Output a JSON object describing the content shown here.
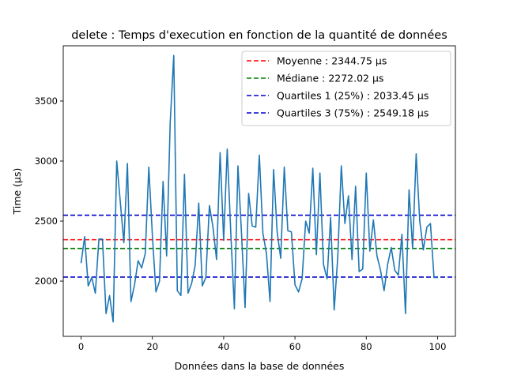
{
  "chart_data": {
    "type": "line",
    "title": "delete : Temps d'execution en fonction de la quantité de données",
    "xlabel": "Données dans la base de données",
    "ylabel": "Time (µs)",
    "xlim": [
      -5,
      105
    ],
    "ylim": [
      1540,
      3960
    ],
    "xticks": [
      0,
      20,
      40,
      60,
      80,
      100
    ],
    "yticks": [
      2000,
      2500,
      3000,
      3500
    ],
    "grid": false,
    "legend_position": "top-right",
    "series": [
      {
        "color": "#1f77b4",
        "x": [
          0,
          1,
          2,
          3,
          4,
          5,
          6,
          7,
          8,
          9,
          10,
          11,
          12,
          13,
          14,
          15,
          16,
          17,
          18,
          19,
          20,
          21,
          22,
          23,
          24,
          25,
          26,
          27,
          28,
          29,
          30,
          31,
          32,
          33,
          34,
          35,
          36,
          37,
          38,
          39,
          40,
          41,
          42,
          43,
          44,
          45,
          46,
          47,
          48,
          49,
          50,
          51,
          52,
          53,
          54,
          55,
          56,
          57,
          58,
          59,
          60,
          61,
          62,
          63,
          64,
          65,
          66,
          67,
          68,
          69,
          70,
          71,
          72,
          73,
          74,
          75,
          76,
          77,
          78,
          79,
          80,
          81,
          82,
          83,
          84,
          85,
          86,
          87,
          88,
          89,
          90,
          91,
          92,
          93,
          94,
          95,
          96,
          97,
          98,
          99,
          100
        ],
        "y": [
          2150,
          2370,
          1960,
          2030,
          1900,
          2350,
          2350,
          1730,
          1880,
          1660,
          3000,
          2660,
          2320,
          2980,
          1830,
          1970,
          2170,
          2110,
          2230,
          2950,
          2380,
          1910,
          2000,
          2830,
          2210,
          3320,
          3880,
          1920,
          1880,
          2890,
          1900,
          1980,
          2130,
          2650,
          1960,
          2030,
          2630,
          2450,
          2180,
          3070,
          2340,
          3100,
          2400,
          1770,
          2960,
          2400,
          1780,
          2730,
          2460,
          2450,
          3050,
          2400,
          2230,
          1830,
          2930,
          2410,
          2190,
          2950,
          2420,
          2410,
          1970,
          1910,
          2020,
          2500,
          2400,
          2940,
          2220,
          2900,
          2140,
          2020,
          2530,
          1760,
          2200,
          2960,
          2480,
          2710,
          2180,
          2790,
          2080,
          2100,
          2900,
          2250,
          2510,
          2210,
          2090,
          1920,
          2140,
          2280,
          2090,
          2050,
          2390,
          1730,
          2760,
          2270,
          3060,
          2500,
          2260,
          2450,
          2480,
          2030,
          2030
        ]
      }
    ],
    "reference_lines": [
      {
        "label": "Moyenne : 2344.75 µs",
        "value": 2344.75,
        "color": "#ff0000"
      },
      {
        "label": "Médiane : 2272.02 µs",
        "value": 2272.02,
        "color": "#008000"
      },
      {
        "label": "Quartiles 1 (25%) : 2033.45 µs",
        "value": 2033.45,
        "color": "#0000cc"
      },
      {
        "label": "Quartiles 3 (75%) : 2549.18 µs",
        "value": 2549.18,
        "color": "#0000cc"
      }
    ]
  }
}
